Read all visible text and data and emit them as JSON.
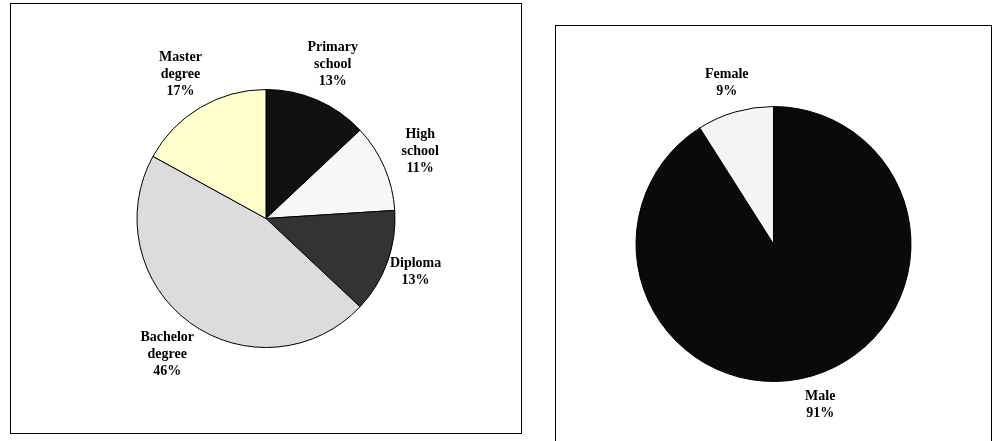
{
  "chart_data": [
    {
      "type": "pie",
      "categories": [
        "Primary school",
        "High school",
        "Diploma",
        "Bachelor degree",
        "Master degree"
      ],
      "values": [
        13,
        11,
        13,
        46,
        17
      ],
      "colors": [
        "#111111",
        "#f7f7f7",
        "#333333",
        "#dcdcdc",
        "#ffffcc"
      ],
      "value_labels": [
        "13%",
        "11%",
        "13%",
        "46%",
        "17%"
      ]
    },
    {
      "type": "pie",
      "categories": [
        "Male",
        "Female"
      ],
      "values": [
        91,
        9
      ],
      "colors": [
        "#0a0a0a",
        "#f4f4f4"
      ],
      "value_labels": [
        "91%",
        "9%"
      ]
    }
  ]
}
